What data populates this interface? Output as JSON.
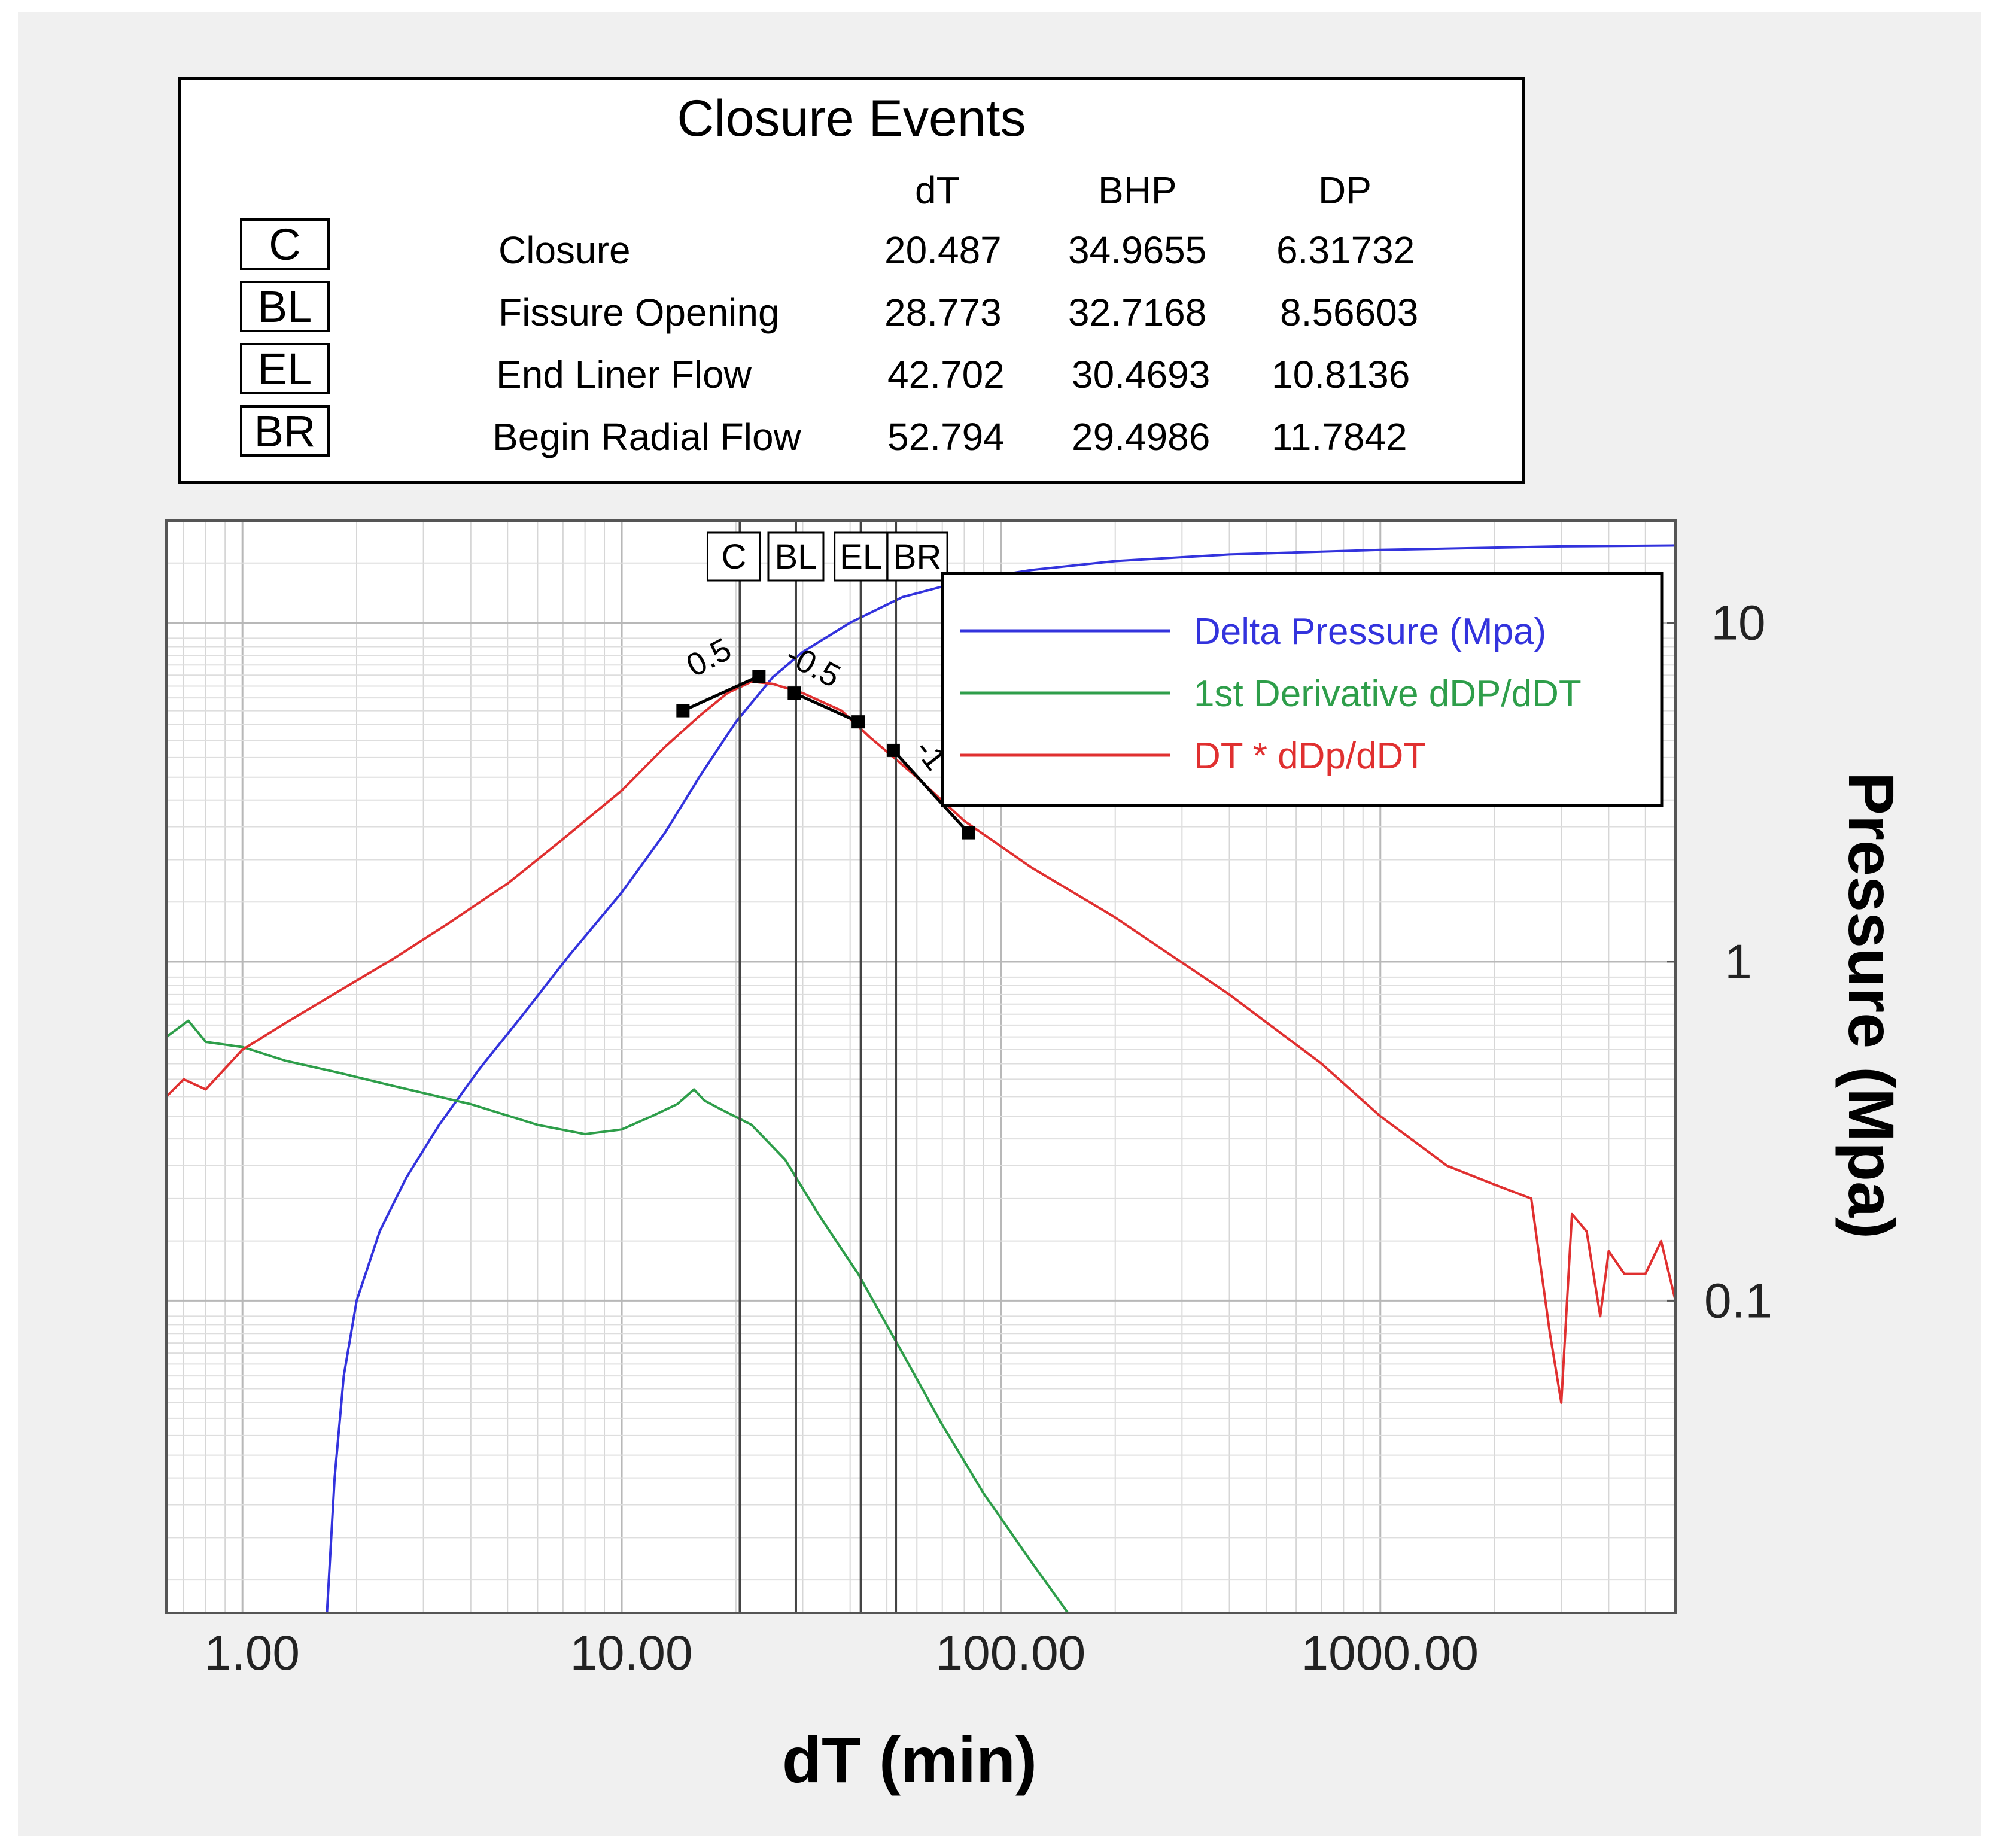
{
  "events_table": {
    "title": "Closure Events",
    "columns": [
      "dT",
      "BHP",
      "DP"
    ],
    "rows": [
      {
        "code": "C",
        "name": "Closure",
        "dT": "20.487",
        "BHP": "34.9655",
        "DP": "6.31732"
      },
      {
        "code": "BL",
        "name": "Fissure Opening",
        "dT": "28.773",
        "BHP": "32.7168",
        "DP": "8.56603"
      },
      {
        "code": "EL",
        "name": "End Liner Flow",
        "dT": "42.702",
        "BHP": "30.4693",
        "DP": "10.8136"
      },
      {
        "code": "BR",
        "name": "Begin Radial Flow",
        "dT": "52.794",
        "BHP": "29.4986",
        "DP": "11.7842"
      }
    ]
  },
  "chart_data": {
    "type": "line",
    "x_scale": "log",
    "y_scale": "log",
    "xlim": [
      0.63,
      6000
    ],
    "ylim": [
      0.012,
      20
    ],
    "xlabel": "dT   (min)",
    "ylabel": "Pressure (Mpa)",
    "x_ticks": [
      {
        "value": 1,
        "label": "1.00"
      },
      {
        "value": 10,
        "label": "10.00"
      },
      {
        "value": 100,
        "label": "100.00"
      },
      {
        "value": 1000,
        "label": "1000.00"
      }
    ],
    "y_ticks": [
      {
        "value": 10,
        "label": "10"
      },
      {
        "value": 1,
        "label": "1"
      },
      {
        "value": 0.1,
        "label": "0.1"
      }
    ],
    "grid": true,
    "legend_position": "top-right",
    "series": [
      {
        "name": "Delta Pressure (Mpa)",
        "color": "#3333dd",
        "points": [
          [
            1.67,
            0.012
          ],
          [
            1.75,
            0.03
          ],
          [
            1.85,
            0.06
          ],
          [
            2.0,
            0.1
          ],
          [
            2.3,
            0.16
          ],
          [
            2.7,
            0.23
          ],
          [
            3.3,
            0.33
          ],
          [
            4.2,
            0.48
          ],
          [
            5.5,
            0.7
          ],
          [
            7.3,
            1.05
          ],
          [
            10,
            1.6
          ],
          [
            13,
            2.4
          ],
          [
            16,
            3.5
          ],
          [
            20,
            5.1
          ],
          [
            25,
            6.9
          ],
          [
            30,
            8.2
          ],
          [
            40,
            10.0
          ],
          [
            55,
            11.9
          ],
          [
            80,
            13.3
          ],
          [
            120,
            14.3
          ],
          [
            200,
            15.2
          ],
          [
            400,
            15.9
          ],
          [
            1000,
            16.4
          ],
          [
            3000,
            16.8
          ],
          [
            6000,
            16.9
          ]
        ]
      },
      {
        "name": "1st Derivative dDP/dDT",
        "color": "#2e9e4a",
        "points": [
          [
            0.63,
            0.6
          ],
          [
            0.72,
            0.67
          ],
          [
            0.8,
            0.58
          ],
          [
            1.0,
            0.56
          ],
          [
            1.3,
            0.51
          ],
          [
            1.8,
            0.47
          ],
          [
            2.5,
            0.43
          ],
          [
            4,
            0.38
          ],
          [
            6,
            0.33
          ],
          [
            8,
            0.31
          ],
          [
            10,
            0.32
          ],
          [
            12,
            0.35
          ],
          [
            14,
            0.38
          ],
          [
            15.5,
            0.42
          ],
          [
            16.5,
            0.39
          ],
          [
            18,
            0.37
          ],
          [
            22,
            0.33
          ],
          [
            27,
            0.26
          ],
          [
            33,
            0.18
          ],
          [
            42,
            0.12
          ],
          [
            55,
            0.07
          ],
          [
            70,
            0.043
          ],
          [
            90,
            0.027
          ],
          [
            120,
            0.017
          ],
          [
            150,
            0.012
          ]
        ]
      },
      {
        "name": "DT * dDp/dDT",
        "color": "#e03030",
        "points": [
          [
            0.63,
            0.4
          ],
          [
            0.7,
            0.45
          ],
          [
            0.8,
            0.42
          ],
          [
            1.0,
            0.55
          ],
          [
            1.3,
            0.66
          ],
          [
            1.8,
            0.82
          ],
          [
            2.5,
            1.02
          ],
          [
            3.5,
            1.3
          ],
          [
            5,
            1.7
          ],
          [
            7,
            2.3
          ],
          [
            10,
            3.2
          ],
          [
            13,
            4.3
          ],
          [
            16,
            5.3
          ],
          [
            19,
            6.2
          ],
          [
            22,
            6.7
          ],
          [
            25,
            6.6
          ],
          [
            30,
            6.2
          ],
          [
            38,
            5.5
          ],
          [
            45,
            4.6
          ],
          [
            60,
            3.5
          ],
          [
            80,
            2.6
          ],
          [
            120,
            1.9
          ],
          [
            200,
            1.35
          ],
          [
            400,
            0.8
          ],
          [
            700,
            0.5
          ],
          [
            1000,
            0.35
          ],
          [
            1500,
            0.25
          ],
          [
            2000,
            0.22
          ],
          [
            2500,
            0.2
          ],
          [
            2800,
            0.08
          ],
          [
            3000,
            0.05
          ],
          [
            3200,
            0.18
          ],
          [
            3500,
            0.16
          ],
          [
            3800,
            0.09
          ],
          [
            4000,
            0.14
          ],
          [
            4400,
            0.12
          ],
          [
            5000,
            0.12
          ],
          [
            5500,
            0.15
          ],
          [
            6000,
            0.1
          ]
        ]
      }
    ],
    "event_lines": [
      {
        "code": "C",
        "x": 20.487
      },
      {
        "code": "BL",
        "x": 28.773
      },
      {
        "code": "EL",
        "x": 42.702
      },
      {
        "code": "BR",
        "x": 52.794
      }
    ],
    "slope_fits": [
      {
        "label": "0.5",
        "points": [
          [
            14.5,
            5.5
          ],
          [
            23,
            6.95
          ]
        ]
      },
      {
        "label": "-0.5",
        "points": [
          [
            28.5,
            6.2
          ],
          [
            42,
            5.1
          ]
        ]
      },
      {
        "label": "-1",
        "points": [
          [
            52,
            4.2
          ],
          [
            82,
            2.4
          ]
        ]
      }
    ],
    "fit_markers": [
      [
        14.5,
        5.5
      ],
      [
        23,
        6.95
      ],
      [
        28.5,
        6.2
      ],
      [
        42,
        5.1
      ],
      [
        52,
        4.2
      ],
      [
        82,
        2.4
      ]
    ],
    "slope_labels": [
      "0.5",
      "-0.5",
      "-1"
    ]
  }
}
